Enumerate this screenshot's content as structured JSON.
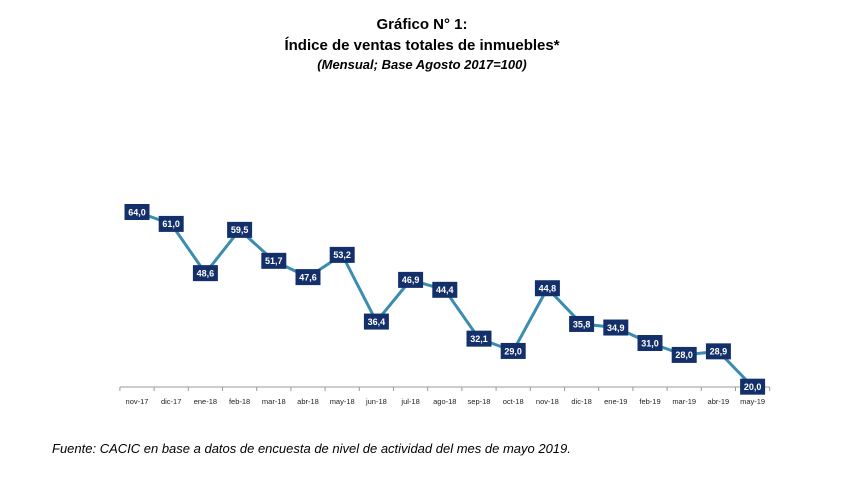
{
  "colors": {
    "line": "#3a8db0",
    "label_bg": "#14306b",
    "label_text": "#ffffff",
    "axis": "#9a9a9a"
  },
  "chart_data": {
    "type": "line",
    "title": "Gráfico N° 1:",
    "subtitle": "Índice de ventas totales de inmuebles*",
    "note": "(Mensual; Base Agosto 2017=100)",
    "categories": [
      "nov-17",
      "dic-17",
      "ene-18",
      "feb-18",
      "mar-18",
      "abr-18",
      "may-18",
      "jun-18",
      "jul-18",
      "ago-18",
      "sep-18",
      "oct-18",
      "nov-18",
      "dic-18",
      "ene-19",
      "feb-19",
      "mar-19",
      "abr-19",
      "may-19"
    ],
    "values": [
      64.0,
      61.0,
      48.6,
      59.5,
      51.7,
      47.6,
      53.2,
      36.4,
      46.9,
      44.4,
      32.1,
      29.0,
      44.8,
      35.8,
      34.9,
      31.0,
      28.0,
      28.9,
      20.0
    ],
    "value_labels": [
      "64,0",
      "61,0",
      "48,6",
      "59,5",
      "51,7",
      "47,6",
      "53,2",
      "36,4",
      "46,9",
      "44,4",
      "32,1",
      "29,0",
      "44,8",
      "35,8",
      "34,9",
      "31,0",
      "28,0",
      "28,9",
      "20,0"
    ],
    "xlabel": "",
    "ylabel": "",
    "grid": false,
    "data_labels": true
  },
  "source": "Fuente: CACIC en base a datos de encuesta de nivel de actividad del mes de mayo 2019."
}
